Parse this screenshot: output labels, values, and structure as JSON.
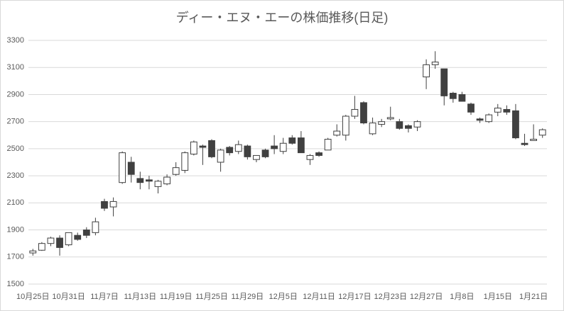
{
  "chart_data": {
    "type": "candlestick",
    "title": "ディー・エヌ・エーの株価推移(日足)",
    "categories": [
      "10月25日",
      null,
      null,
      null,
      "10月31日",
      null,
      null,
      null,
      "11月7日",
      null,
      null,
      null,
      "11月13日",
      null,
      null,
      null,
      "11月19日",
      null,
      null,
      null,
      "11月25日",
      null,
      null,
      null,
      "11月29日",
      null,
      null,
      null,
      "12月5日",
      null,
      null,
      null,
      "12月11日",
      null,
      null,
      null,
      "12月17日",
      null,
      null,
      null,
      "12月23日",
      null,
      null,
      null,
      "12月27日",
      null,
      null,
      null,
      "1月8日",
      null,
      null,
      null,
      "1月15日",
      null,
      null,
      null,
      "1月21日",
      null
    ],
    "open": [
      1730,
      1750,
      1800,
      1840,
      1790,
      1860,
      1900,
      1880,
      2110,
      2070,
      2250,
      2400,
      2280,
      2270,
      2220,
      2240,
      2310,
      2340,
      2460,
      2520,
      2560,
      2400,
      2510,
      2480,
      2520,
      2420,
      2490,
      2520,
      2480,
      2580,
      2580,
      2420,
      2470,
      2490,
      2600,
      2600,
      2740,
      2840,
      2610,
      2680,
      2720,
      2700,
      2670,
      2660,
      3030,
      3120,
      3090,
      2910,
      2900,
      2830,
      2720,
      2700,
      2770,
      2790,
      2780,
      2540,
      2560,
      2600
    ],
    "high": [
      1760,
      1810,
      1850,
      1860,
      1880,
      1880,
      1920,
      1990,
      2130,
      2140,
      2480,
      2440,
      2330,
      2300,
      2270,
      2310,
      2400,
      2480,
      2560,
      2530,
      2570,
      2500,
      2520,
      2560,
      2530,
      2450,
      2500,
      2600,
      2580,
      2600,
      2630,
      2460,
      2480,
      2580,
      2680,
      2750,
      2890,
      2850,
      2730,
      2720,
      2810,
      2720,
      2680,
      2710,
      3160,
      3220,
      3090,
      2920,
      2920,
      2840,
      2730,
      2760,
      2830,
      2820,
      2830,
      2610,
      2680,
      2650
    ],
    "low": [
      1710,
      1745,
      1780,
      1710,
      1780,
      1820,
      1840,
      1860,
      2040,
      2000,
      2240,
      2250,
      2200,
      2200,
      2170,
      2230,
      2300,
      2320,
      2450,
      2380,
      2430,
      2330,
      2450,
      2460,
      2420,
      2400,
      2430,
      2460,
      2460,
      2530,
      2470,
      2380,
      2440,
      2490,
      2590,
      2560,
      2720,
      2680,
      2600,
      2660,
      2710,
      2640,
      2620,
      2630,
      2940,
      3090,
      2820,
      2840,
      2850,
      2750,
      2690,
      2690,
      2740,
      2750,
      2570,
      2520,
      2560,
      2580
    ],
    "close": [
      1745,
      1800,
      1840,
      1770,
      1880,
      1830,
      1860,
      1960,
      2060,
      2110,
      2470,
      2310,
      2250,
      2260,
      2260,
      2290,
      2360,
      2470,
      2550,
      2510,
      2440,
      2490,
      2470,
      2530,
      2440,
      2450,
      2440,
      2500,
      2540,
      2540,
      2470,
      2450,
      2450,
      2570,
      2630,
      2740,
      2790,
      2690,
      2690,
      2700,
      2730,
      2650,
      2650,
      2700,
      3120,
      3140,
      2890,
      2870,
      2850,
      2770,
      2710,
      2750,
      2800,
      2770,
      2580,
      2530,
      2570,
      2640
    ],
    "up_color": "#ffffff",
    "down_color": "#404040",
    "edge_color": "#404040",
    "ylim": [
      1500,
      3300
    ],
    "yticks": [
      1500,
      1700,
      1900,
      2100,
      2300,
      2500,
      2700,
      2900,
      3100,
      3300
    ],
    "grid": true
  }
}
